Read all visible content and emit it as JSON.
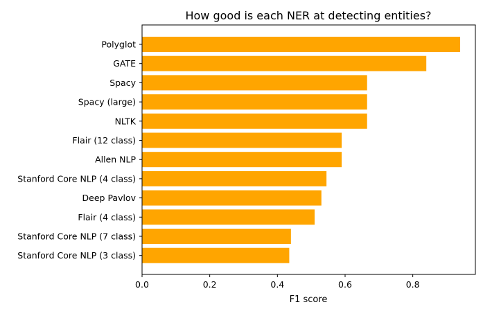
{
  "chart_data": {
    "type": "bar",
    "orientation": "horizontal",
    "title": "How good is each NER at detecting entities?",
    "xlabel": "F1 score",
    "ylabel": "",
    "xlim": [
      0,
      0.985
    ],
    "xticks": [
      0.0,
      0.2,
      0.4,
      0.6,
      0.8
    ],
    "xtick_labels": [
      "0.0",
      "0.2",
      "0.4",
      "0.6",
      "0.8"
    ],
    "categories": [
      "Polyglot",
      "GATE",
      "Spacy",
      "Spacy (large)",
      "NLTK",
      "Flair (12 class)",
      "Allen NLP",
      "Stanford Core NLP (4 class)",
      "Deep Pavlov",
      "Flair (4 class)",
      "Stanford Core NLP (7 class)",
      "Stanford Core NLP (3 class)"
    ],
    "values": [
      0.94,
      0.84,
      0.665,
      0.665,
      0.665,
      0.59,
      0.59,
      0.545,
      0.53,
      0.51,
      0.44,
      0.435
    ],
    "bar_color": "#ffa500",
    "grid": false,
    "legend": "none"
  }
}
